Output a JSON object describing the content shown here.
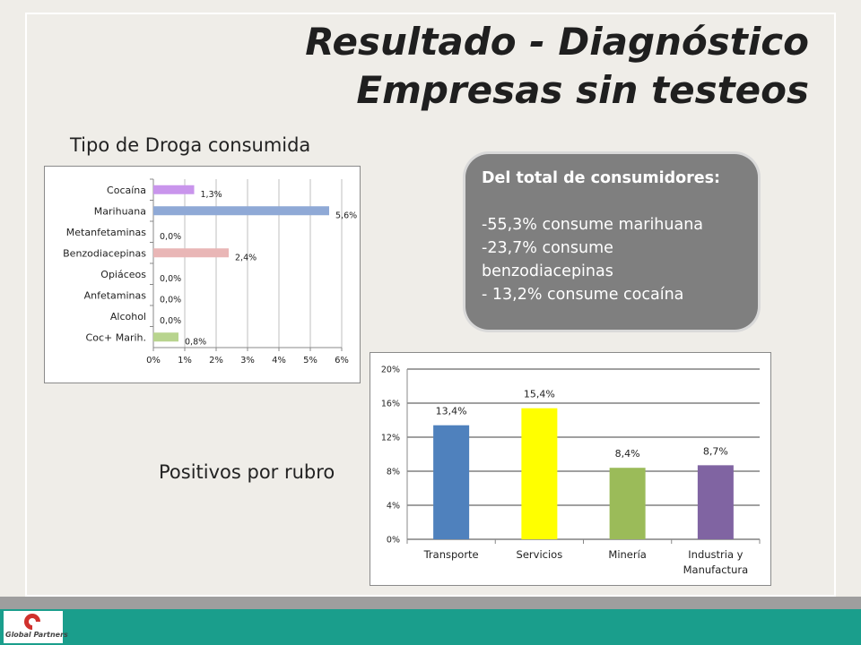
{
  "title": {
    "line1": "Resultado - Diagnóstico",
    "line2": "Empresas sin testeos"
  },
  "drug_label": "Tipo de Droga consumida",
  "sector_label": "Positivos por rubro",
  "callout": {
    "heading": "Del total de consumidores:",
    "lines": [
      " -55,3% consume marihuana",
      "-23,7% consume benzodiacepinas",
      "- 13,2% consume cocaína"
    ]
  },
  "logo": {
    "text": "Global Partners"
  },
  "colors": {
    "background": "#efede8",
    "footer_teal": "#1a9e8c",
    "footer_gray": "#9e9e9e",
    "callout": "#7f7f7f"
  },
  "chart_data": [
    {
      "type": "bar",
      "orientation": "horizontal",
      "categories": [
        "Cocaína",
        "Marihuana",
        "Metanfetaminas",
        "Benzodiacepinas",
        "Opiáceos",
        "Anfetaminas",
        "Alcohol",
        "Coc+ Marih."
      ],
      "values": [
        1.3,
        5.6,
        0.0,
        2.4,
        0.0,
        0.0,
        0.0,
        0.8
      ],
      "data_labels": [
        "1,3%",
        "5,6%",
        "0,0%",
        "2,4%",
        "0,0%",
        "0,0%",
        "0,0%",
        "0,8%"
      ],
      "colors": [
        "#c995ec",
        "#8fa9d6",
        "#e6b3b3",
        "#e9b6b6",
        "#cccccc",
        "#cccccc",
        "#cccccc",
        "#b8d48e"
      ],
      "xlim": [
        0,
        6
      ],
      "xticks": [
        0,
        1,
        2,
        3,
        4,
        5,
        6
      ],
      "xtick_labels": [
        "0%",
        "1%",
        "2%",
        "3%",
        "4%",
        "5%",
        "6%"
      ],
      "grid": true,
      "legend": "none"
    },
    {
      "type": "bar",
      "orientation": "vertical",
      "categories": [
        "Transporte",
        "Servicios",
        "Minería",
        "Industria y Manufactura"
      ],
      "category_lines": [
        [
          "Transporte"
        ],
        [
          "Servicios"
        ],
        [
          "Minería"
        ],
        [
          "Industria y",
          "Manufactura"
        ]
      ],
      "values": [
        13.4,
        15.4,
        8.4,
        8.7
      ],
      "data_labels": [
        "13,4%",
        "15,4%",
        "8,4%",
        "8,7%"
      ],
      "colors": [
        "#4f81bd",
        "#ffff00",
        "#9bbb59",
        "#8064a2"
      ],
      "ylim": [
        0,
        20
      ],
      "yticks": [
        0,
        4,
        8,
        12,
        16,
        20
      ],
      "ytick_labels": [
        "0%",
        "4%",
        "8%",
        "12%",
        "16%",
        "20%"
      ],
      "grid": true,
      "legend": "none"
    }
  ]
}
